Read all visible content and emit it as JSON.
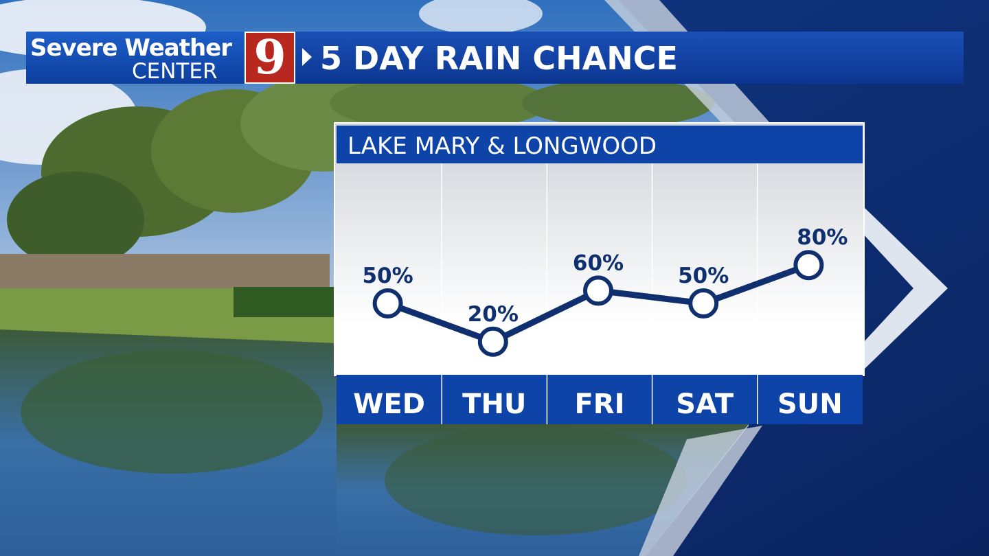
{
  "header": {
    "brand_line1": "Severe Weather",
    "brand_line2": "CENTER",
    "logo_number": "9",
    "title": "5 DAY RAIN CHANCE"
  },
  "panel": {
    "title": "LAKE MARY & LONGWOOD"
  },
  "colors": {
    "banner_blue": "#0e44a8",
    "logo_red": "#b8281e",
    "line_navy": "#0f2f6e"
  },
  "chart_data": {
    "type": "line",
    "title": "LAKE MARY & LONGWOOD",
    "categories": [
      "WED",
      "THU",
      "FRI",
      "SAT",
      "SUN"
    ],
    "series": [
      {
        "values": [
          50,
          20,
          60,
          50,
          80
        ],
        "labels": [
          "50%",
          "20%",
          "60%",
          "50%",
          "80%"
        ]
      }
    ],
    "ylim": [
      0,
      100
    ],
    "grid": "vertical separators"
  }
}
